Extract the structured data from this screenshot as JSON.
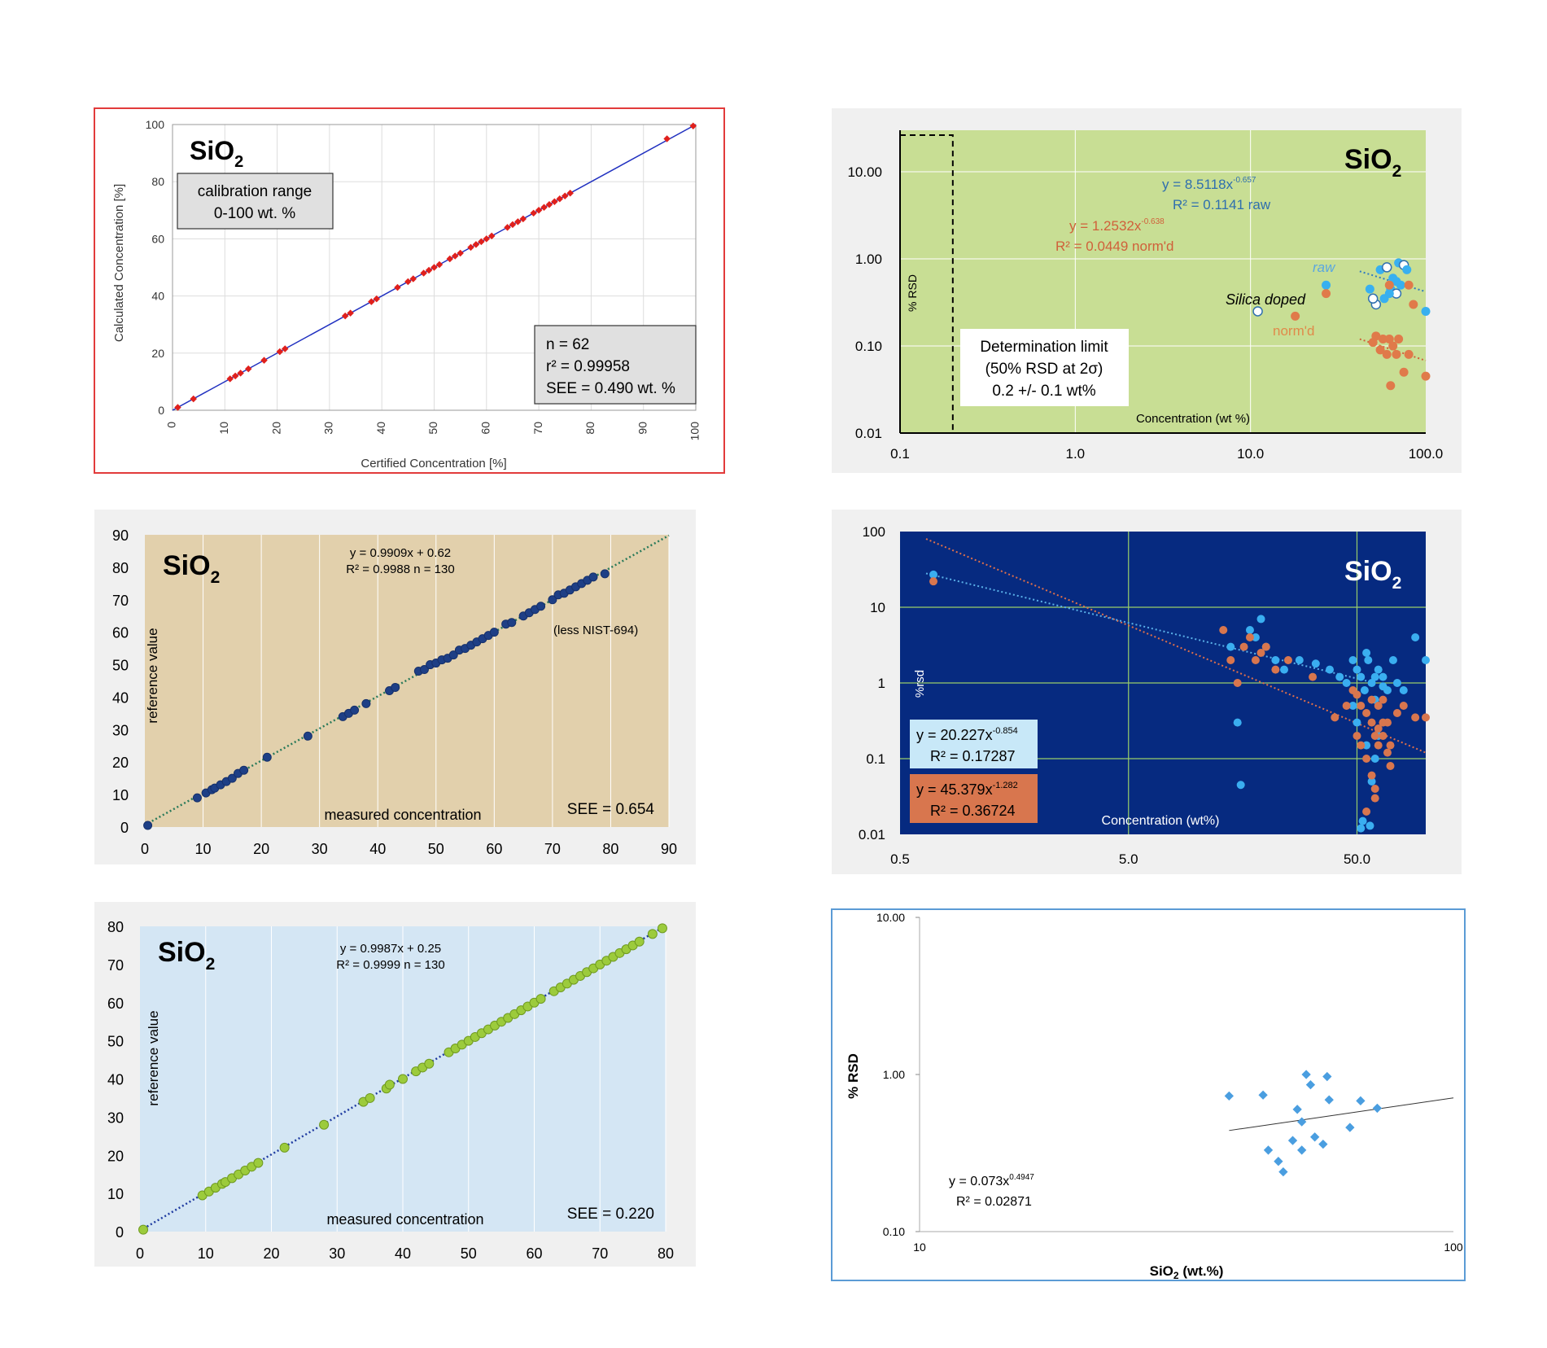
{
  "chart_data": [
    {
      "type": "scatter",
      "element": "SiO",
      "element_sub": "2",
      "xlabel": "Certified Concentration [%]",
      "ylabel": "Calculated Concentration [%]",
      "xlim": [
        0,
        100
      ],
      "ylim": [
        0,
        100
      ],
      "x_ticks": [
        0,
        10,
        20,
        30,
        40,
        50,
        60,
        70,
        80,
        90,
        100
      ],
      "y_ticks": [
        0,
        20,
        40,
        60,
        80,
        100
      ],
      "box1": [
        "calibration range",
        "0-100 wt. %"
      ],
      "box2": [
        "n = 62",
        "r² = 0.99958",
        "SEE = 0.490 wt. %"
      ],
      "fit_line": [
        [
          0,
          0
        ],
        [
          100,
          100
        ]
      ],
      "series": [
        {
          "x": [
            1,
            4,
            11,
            12,
            13,
            14.5,
            17.5,
            20.5,
            21.5,
            33,
            34,
            38,
            39,
            43,
            45,
            46,
            48,
            49,
            50,
            51,
            53,
            54,
            55,
            57,
            58,
            59,
            60,
            61,
            64,
            65,
            66,
            67,
            69,
            70,
            71,
            72,
            73,
            74,
            75,
            76,
            94.5,
            99.5
          ],
          "y": [
            1,
            4,
            11,
            12,
            13,
            14.5,
            17.5,
            20.5,
            21.5,
            33,
            34,
            38,
            39,
            43,
            45,
            46,
            48,
            49,
            50,
            51,
            53,
            54,
            55,
            57,
            58,
            59,
            60,
            61,
            64,
            65,
            66,
            67,
            69,
            70,
            71,
            72,
            73,
            74,
            75,
            76,
            95,
            99.5
          ]
        }
      ]
    },
    {
      "type": "scatter",
      "element": "SiO",
      "element_sub": "2",
      "xlabel": "Concentration (wt %)",
      "ylabel": "% RSD",
      "x_scale": "log",
      "y_scale": "log",
      "xlim": [
        0.1,
        100
      ],
      "ylim": [
        0.01,
        30
      ],
      "x_ticks": [
        "0.1",
        "1.0",
        "10.0",
        "100.0"
      ],
      "y_ticks": [
        "0.01",
        "0.10",
        "1.00",
        "10.00"
      ],
      "eq_raw": [
        "y = 8.5118x",
        "-0.657",
        "R² = 0.1141  raw"
      ],
      "eq_norm": [
        "y = 1.2532x",
        "-0.638",
        "R² = 0.0449  norm'd"
      ],
      "label_raw": "raw",
      "label_norm": "norm'd",
      "label_doped": "Silica doped",
      "limit_box": [
        "Determination limit",
        "(50% RSD at 2σ)",
        "0.2 +/- 0.1 wt%"
      ],
      "series": [
        {
          "style": "raw",
          "x": [
            11,
            27,
            48,
            52,
            55,
            58,
            60,
            63,
            65,
            68,
            70,
            72,
            75,
            78,
            100,
            50,
            62,
            68
          ],
          "y": [
            0.25,
            0.5,
            0.45,
            0.3,
            0.75,
            0.35,
            0.8,
            0.45,
            0.6,
            0.4,
            0.9,
            0.5,
            0.85,
            0.75,
            0.25,
            0.35,
            0.4,
            0.55
          ]
        },
        {
          "style": "norm",
          "x": [
            18,
            27,
            52,
            57,
            62,
            65,
            70,
            50,
            55,
            60,
            63,
            68,
            75,
            80,
            85,
            100,
            62,
            80
          ],
          "y": [
            0.22,
            0.4,
            0.13,
            0.12,
            0.12,
            0.1,
            0.12,
            0.11,
            0.09,
            0.08,
            0.035,
            0.08,
            0.05,
            0.08,
            0.3,
            0.045,
            0.5,
            0.5
          ]
        }
      ],
      "fit_raw": [
        [
          42,
          0.72
        ],
        [
          100,
          0.42
        ]
      ],
      "fit_norm": [
        [
          42,
          0.12
        ],
        [
          100,
          0.068
        ]
      ]
    },
    {
      "type": "scatter",
      "element": "SiO",
      "element_sub": "2",
      "xlabel": "measured concentration",
      "ylabel": "reference value",
      "xlim": [
        0,
        90
      ],
      "ylim": [
        0,
        90
      ],
      "x_ticks": [
        0,
        10,
        20,
        30,
        40,
        50,
        60,
        70,
        80,
        90
      ],
      "y_ticks": [
        0,
        10,
        20,
        30,
        40,
        50,
        60,
        70,
        80,
        90
      ],
      "eq": [
        "y = 0.9909x + 0.62",
        "R² = 0.9988   n = 130"
      ],
      "note": "(less NIST-694)",
      "see": "SEE = 0.654",
      "fit_line": [
        [
          0,
          0.62
        ],
        [
          90,
          89.8
        ]
      ],
      "series": [
        {
          "x": [
            0.5,
            9,
            10.5,
            11.5,
            12,
            13,
            14,
            15,
            16,
            17,
            21,
            28,
            34,
            35,
            36,
            38,
            42,
            43,
            47,
            48,
            49,
            50,
            51,
            52,
            53,
            54,
            55,
            56,
            57,
            58,
            59,
            60,
            62,
            63,
            65,
            66,
            67,
            68,
            70,
            71,
            72,
            73,
            74,
            75,
            76,
            77,
            79
          ],
          "y": [
            0.5,
            9,
            10.5,
            11.5,
            12,
            13,
            14,
            15,
            16.5,
            17.5,
            21.5,
            28,
            34,
            35,
            36,
            38,
            42,
            43,
            48,
            48.5,
            50,
            50.5,
            51.5,
            52,
            53,
            54.5,
            55,
            56,
            57,
            58,
            59,
            60,
            62.5,
            63,
            65,
            66,
            67,
            68,
            70,
            71.5,
            72,
            73,
            74,
            75,
            76,
            77,
            78
          ]
        }
      ]
    },
    {
      "type": "scatter",
      "element": "SiO",
      "element_sub": "2",
      "xlabel": "Concentration (wt%)",
      "ylabel": "%rsd",
      "x_scale": "log",
      "y_scale": "log",
      "xlim": [
        0.5,
        100
      ],
      "ylim": [
        0.01,
        100
      ],
      "x_ticks": [
        "0.5",
        "5.0",
        "50.0"
      ],
      "y_ticks": [
        "0.01",
        "0.1",
        "1",
        "10",
        "100"
      ],
      "eq_blue": [
        "y = 20.227x",
        "-0.854",
        "R² = 0.17287"
      ],
      "eq_orange": [
        "y = 45.379x",
        "-1.282",
        "R² = 0.36724"
      ],
      "fit_blue": [
        [
          0.65,
          28
        ],
        [
          60,
          1.0
        ]
      ],
      "fit_orange": [
        [
          0.65,
          80
        ],
        [
          100,
          0.12
        ]
      ],
      "series": [
        {
          "style": "blue",
          "x": [
            0.7,
            14,
            15,
            15.5,
            17,
            18,
            19,
            20,
            22,
            24,
            28,
            33,
            38,
            42,
            45,
            48,
            50,
            52,
            54,
            56,
            58,
            60,
            62,
            65,
            68,
            72,
            75,
            80,
            90,
            100,
            50,
            55,
            60,
            52,
            58,
            62,
            48,
            55,
            60,
            65,
            53,
            57
          ],
          "y": [
            27,
            3,
            0.3,
            0.045,
            5,
            4,
            7,
            3,
            2,
            1.5,
            2,
            1.8,
            1.5,
            1.2,
            1.0,
            2.0,
            1.5,
            1.2,
            0.8,
            2,
            1.0,
            0.6,
            1.5,
            1.2,
            0.8,
            2,
            1.0,
            0.8,
            4,
            2,
            0.3,
            0.15,
            0.1,
            0.012,
            0.05,
            0.2,
            0.5,
            2.5,
            1.2,
            0.9,
            0.015,
            0.013
          ]
        },
        {
          "style": "orange",
          "x": [
            0.7,
            13,
            14,
            15,
            16,
            17,
            18,
            19,
            20,
            22,
            25,
            32,
            40,
            45,
            48,
            50,
            52,
            55,
            58,
            60,
            62,
            65,
            68,
            70,
            75,
            80,
            90,
            100,
            50,
            52,
            55,
            58,
            60,
            62,
            65,
            68,
            70,
            55,
            60,
            65,
            58,
            62
          ],
          "y": [
            22,
            5,
            2,
            1.0,
            3,
            4,
            2,
            2.5,
            3,
            1.5,
            2,
            1.2,
            0.35,
            0.5,
            0.8,
            0.7,
            0.5,
            0.4,
            0.3,
            0.2,
            0.5,
            0.6,
            0.3,
            0.15,
            0.4,
            0.5,
            0.35,
            0.35,
            0.2,
            0.15,
            0.1,
            0.06,
            0.03,
            0.25,
            0.2,
            0.12,
            0.08,
            0.02,
            0.04,
            0.3,
            0.6,
            0.15
          ]
        }
      ]
    },
    {
      "type": "scatter",
      "element": "SiO",
      "element_sub": "2",
      "xlabel": "measured concentration",
      "ylabel": "reference value",
      "xlim": [
        0,
        80
      ],
      "ylim": [
        0,
        80
      ],
      "x_ticks": [
        0,
        10,
        20,
        30,
        40,
        50,
        60,
        70,
        80
      ],
      "y_ticks": [
        0,
        10,
        20,
        30,
        40,
        50,
        60,
        70,
        80
      ],
      "eq": [
        "y = 0.9987x + 0.25",
        "R² = 0.9999   n = 130"
      ],
      "see": "SEE = 0.220",
      "fit_line": [
        [
          0,
          0.25
        ],
        [
          80,
          80.15
        ]
      ],
      "series": [
        {
          "x": [
            0.5,
            9.5,
            10.5,
            11.5,
            12.5,
            13,
            14,
            15,
            16,
            17,
            18,
            22,
            28,
            34,
            35,
            37.5,
            38,
            40,
            42,
            43,
            44,
            47,
            48,
            49,
            50,
            51,
            52,
            53,
            54,
            55,
            56,
            57,
            58,
            59,
            60,
            61,
            63,
            64,
            65,
            66,
            67,
            68,
            69,
            70,
            71,
            72,
            73,
            74,
            75,
            76,
            78,
            79.5
          ],
          "y": [
            0.5,
            9.5,
            10.5,
            11.5,
            12.5,
            13,
            14,
            15,
            16,
            17,
            18,
            22,
            28,
            34,
            35,
            37.5,
            38.5,
            40,
            42,
            43,
            44,
            47,
            48,
            49,
            50,
            51,
            52,
            53,
            54,
            55,
            56,
            57,
            58,
            59,
            60,
            61,
            63,
            64,
            65,
            66,
            67,
            68,
            69,
            70,
            71,
            72,
            73,
            74,
            75,
            76,
            78,
            79.5
          ]
        }
      ]
    },
    {
      "type": "scatter",
      "xlabel_main": "SiO",
      "xlabel_sub": "2",
      "xlabel_tail": " (wt.%)",
      "ylabel": "% RSD",
      "x_scale": "log",
      "y_scale": "log",
      "xlim": [
        10,
        100
      ],
      "ylim": [
        0.1,
        10
      ],
      "x_ticks": [
        "10",
        "100"
      ],
      "y_ticks": [
        "0.10",
        "1.00",
        "10.00"
      ],
      "eq": [
        "y = 0.073x",
        "0.4947",
        "R² = 0.02871"
      ],
      "fit_line": [
        [
          38,
          0.44
        ],
        [
          100,
          0.71
        ]
      ],
      "series": [
        {
          "x": [
            38,
            44,
            45,
            47,
            48,
            50,
            52,
            51,
            53,
            54,
            55,
            52,
            57,
            58,
            58.5,
            64,
            67,
            72
          ],
          "y": [
            0.73,
            0.74,
            0.33,
            0.28,
            0.24,
            0.38,
            0.33,
            0.6,
            1.0,
            0.86,
            0.4,
            0.5,
            0.36,
            0.97,
            0.69,
            0.46,
            0.68,
            0.61
          ]
        }
      ]
    }
  ]
}
